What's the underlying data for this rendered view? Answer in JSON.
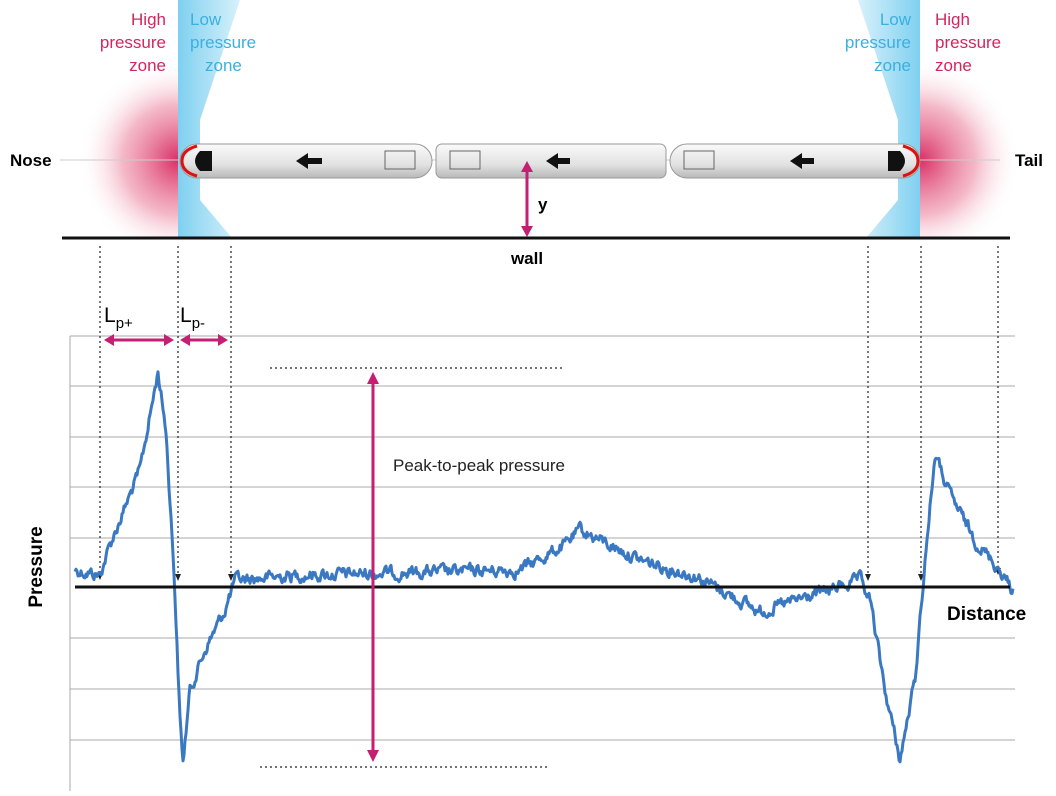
{
  "zones": [
    {
      "lines": [
        "High",
        "pressure",
        "zone"
      ]
    },
    {
      "lines": [
        "Low",
        "pressure",
        "zone"
      ]
    },
    {
      "lines": [
        "Low",
        "pressure",
        "zone"
      ]
    },
    {
      "lines": [
        "High",
        "pressure",
        "zone"
      ]
    }
  ],
  "ends": {
    "nose": "Nose",
    "tail": "Tail"
  },
  "gap": "y",
  "wall": "wall",
  "lengths": [
    {
      "symbol": "L",
      "subscript": "p+"
    },
    {
      "symbol": "L",
      "subscript": "p-"
    }
  ],
  "peak": "Peak-to-peak pressure",
  "axes": {
    "y": "Pressure",
    "x": "Distance"
  }
}
